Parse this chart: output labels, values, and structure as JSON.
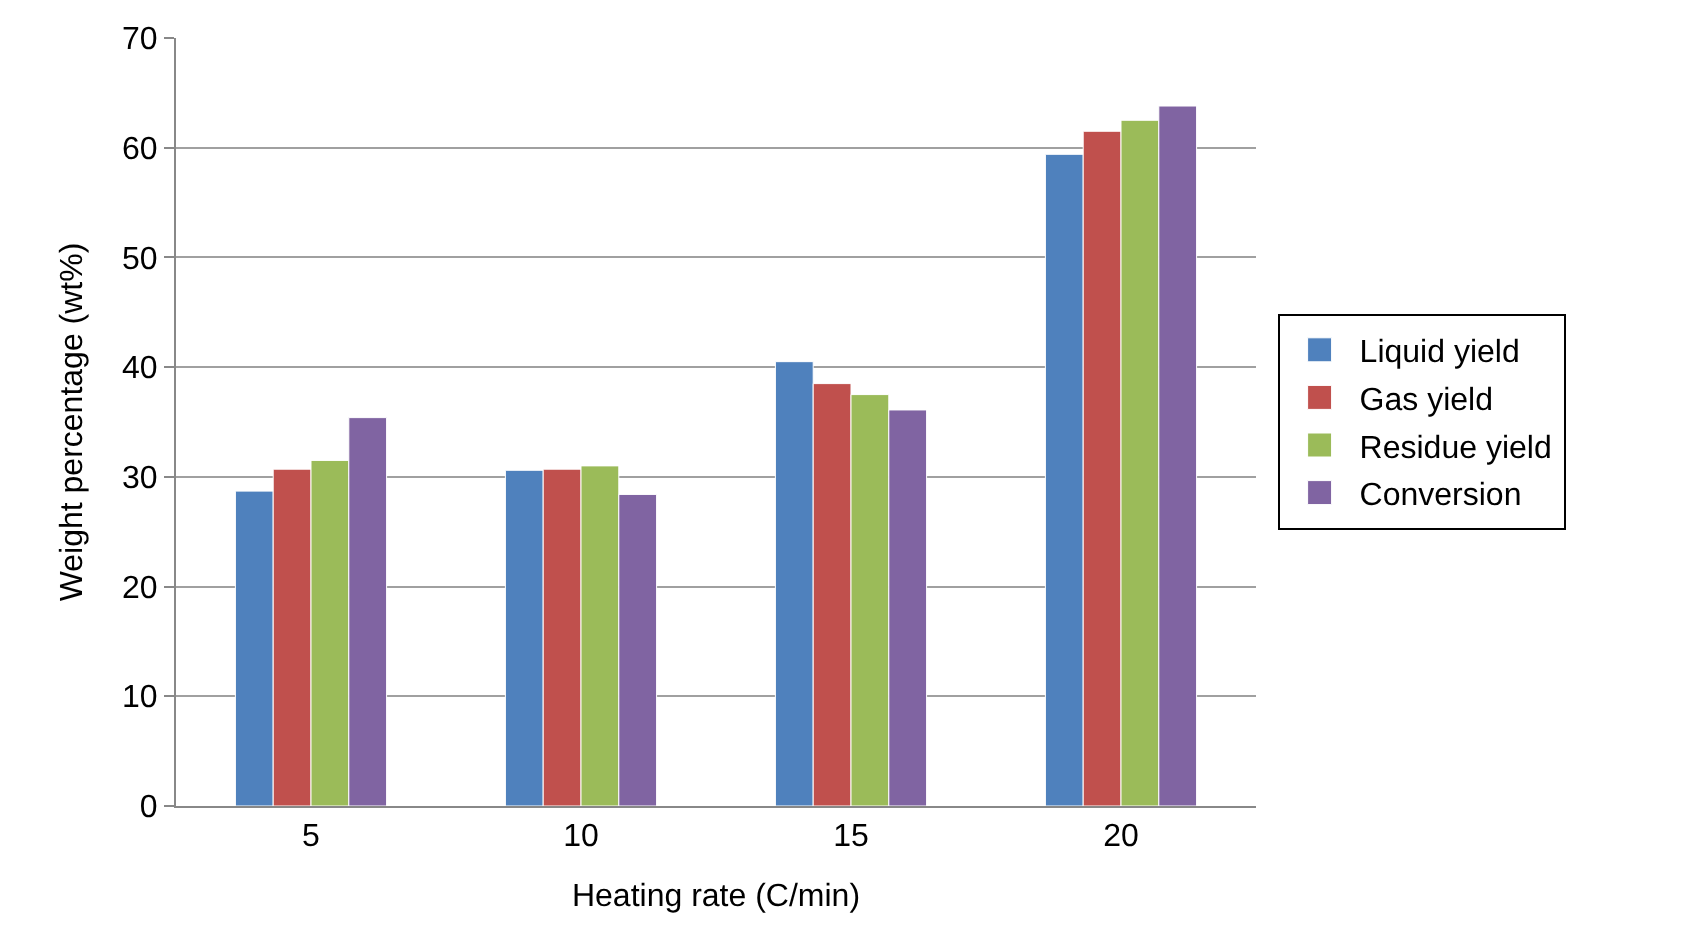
{
  "chart_data": {
    "type": "bar",
    "xlabel": "Heating rate (C/min)",
    "ylabel": "Weight percentage (wt%)",
    "categories": [
      "5",
      "10",
      "15",
      "20"
    ],
    "series": [
      {
        "name": "Liquid yield",
        "color": "#4f81bd",
        "values": [
          28.7,
          30.6,
          40.5,
          59.4
        ]
      },
      {
        "name": "Gas yield",
        "color": "#c0504d",
        "values": [
          30.7,
          30.7,
          38.5,
          61.5
        ]
      },
      {
        "name": "Residue yield",
        "color": "#9bbb59",
        "values": [
          31.5,
          31.0,
          37.5,
          62.5
        ]
      },
      {
        "name": "Conversion",
        "color": "#8064a2",
        "values": [
          35.4,
          28.4,
          36.1,
          63.8
        ]
      }
    ],
    "ylim": [
      0,
      70
    ],
    "yticks": [
      0,
      10,
      20,
      30,
      40,
      50,
      60,
      70
    ],
    "grid": "y",
    "legend": "right"
  }
}
